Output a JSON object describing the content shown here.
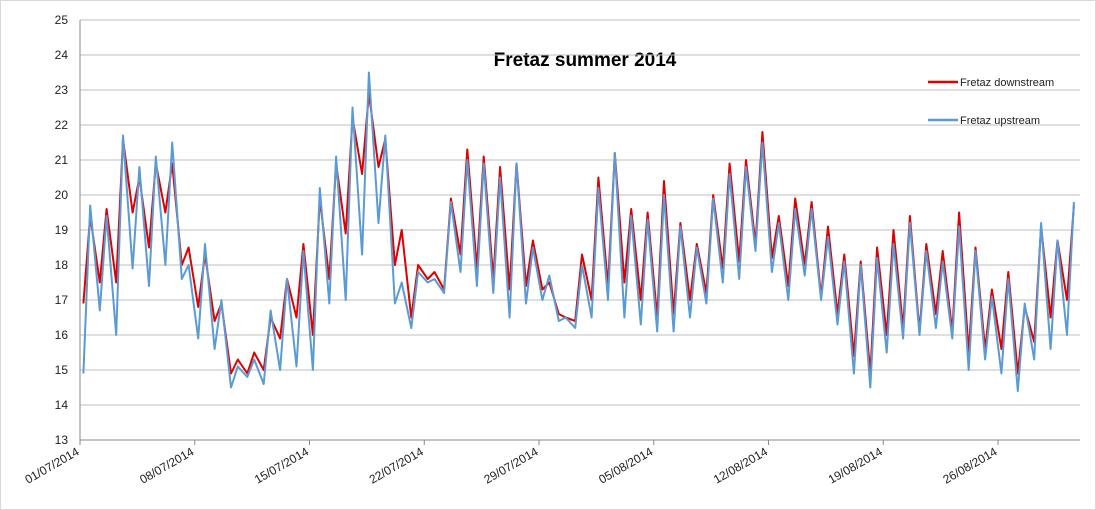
{
  "chart_data": {
    "type": "line",
    "title": "Fretaz  summer 2014",
    "x": [
      "2014-07-01 05:00",
      "2014-07-01 15:00",
      "2014-07-02 05:00",
      "2014-07-02 15:00",
      "2014-07-03 05:00",
      "2014-07-03 15:00",
      "2014-07-04 05:00",
      "2014-07-04 15:00",
      "2014-07-05 05:00",
      "2014-07-05 15:00",
      "2014-07-06 05:00",
      "2014-07-06 15:00",
      "2014-07-07 05:00",
      "2014-07-07 15:00",
      "2014-07-08 05:00",
      "2014-07-08 15:00",
      "2014-07-09 05:00",
      "2014-07-09 15:00",
      "2014-07-10 05:00",
      "2014-07-10 15:00",
      "2014-07-11 05:00",
      "2014-07-11 15:00",
      "2014-07-12 05:00",
      "2014-07-12 15:00",
      "2014-07-13 05:00",
      "2014-07-13 15:00",
      "2014-07-14 05:00",
      "2014-07-14 15:00",
      "2014-07-15 05:00",
      "2014-07-15 15:00",
      "2014-07-16 05:00",
      "2014-07-16 15:00",
      "2014-07-17 05:00",
      "2014-07-17 15:00",
      "2014-07-18 05:00",
      "2014-07-18 15:00",
      "2014-07-19 05:00",
      "2014-07-19 15:00",
      "2014-07-20 05:00",
      "2014-07-20 15:00",
      "2014-07-21 05:00",
      "2014-07-21 15:00",
      "2014-07-22 05:00",
      "2014-07-22 15:00",
      "2014-07-23 05:00",
      "2014-07-23 15:00",
      "2014-07-24 05:00",
      "2014-07-24 15:00",
      "2014-07-25 05:00",
      "2014-07-25 15:00",
      "2014-07-26 05:00",
      "2014-07-26 15:00",
      "2014-07-27 05:00",
      "2014-07-27 15:00",
      "2014-07-28 05:00",
      "2014-07-28 15:00",
      "2014-07-29 05:00",
      "2014-07-29 15:00",
      "2014-07-30 05:00",
      "2014-07-30 15:00",
      "2014-07-31 05:00",
      "2014-07-31 15:00",
      "2014-08-01 05:00",
      "2014-08-01 15:00",
      "2014-08-02 05:00",
      "2014-08-02 15:00",
      "2014-08-03 05:00",
      "2014-08-03 15:00",
      "2014-08-04 05:00",
      "2014-08-04 15:00",
      "2014-08-05 05:00",
      "2014-08-05 15:00",
      "2014-08-06 05:00",
      "2014-08-06 15:00",
      "2014-08-07 05:00",
      "2014-08-07 15:00",
      "2014-08-08 05:00",
      "2014-08-08 15:00",
      "2014-08-09 05:00",
      "2014-08-09 15:00",
      "2014-08-10 05:00",
      "2014-08-10 15:00",
      "2014-08-11 05:00",
      "2014-08-11 15:00",
      "2014-08-12 05:00",
      "2014-08-12 15:00",
      "2014-08-13 05:00",
      "2014-08-13 15:00",
      "2014-08-14 05:00",
      "2014-08-14 15:00",
      "2014-08-15 05:00",
      "2014-08-15 15:00",
      "2014-08-16 05:00",
      "2014-08-16 15:00",
      "2014-08-17 05:00",
      "2014-08-17 15:00",
      "2014-08-18 05:00",
      "2014-08-18 15:00",
      "2014-08-19 05:00",
      "2014-08-19 15:00",
      "2014-08-20 05:00",
      "2014-08-20 15:00",
      "2014-08-21 05:00",
      "2014-08-21 15:00",
      "2014-08-22 05:00",
      "2014-08-22 15:00",
      "2014-08-23 05:00",
      "2014-08-23 15:00",
      "2014-08-24 05:00",
      "2014-08-24 15:00",
      "2014-08-25 05:00",
      "2014-08-25 15:00",
      "2014-08-26 05:00",
      "2014-08-26 15:00",
      "2014-08-27 05:00",
      "2014-08-27 15:00",
      "2014-08-28 05:00",
      "2014-08-28 15:00",
      "2014-08-29 05:00",
      "2014-08-29 15:00",
      "2014-08-30 05:00",
      "2014-08-30 15:00"
    ],
    "series": [
      {
        "name": "Fretaz downstream",
        "color": "#e00000",
        "values": [
          16.9,
          19.4,
          17.5,
          19.6,
          17.5,
          21.6,
          19.5,
          20.5,
          18.5,
          20.9,
          19.5,
          20.9,
          18.0,
          18.5,
          16.8,
          18.3,
          16.4,
          16.9,
          14.9,
          15.3,
          14.9,
          15.5,
          15.0,
          16.5,
          15.9,
          17.6,
          16.5,
          18.6,
          16.0,
          19.9,
          17.6,
          20.9,
          18.9,
          22.2,
          20.6,
          22.9,
          20.8,
          21.6,
          18.0,
          19.0,
          16.5,
          18.0,
          17.6,
          17.8,
          17.3,
          19.9,
          18.3,
          21.3,
          17.9,
          21.1,
          17.6,
          20.8,
          17.3,
          20.9,
          17.4,
          18.7,
          17.3,
          17.5,
          16.6,
          16.5,
          16.4,
          18.3,
          17.0,
          20.5,
          17.4,
          21.2,
          17.5,
          19.6,
          17.0,
          19.5,
          16.5,
          20.4,
          16.6,
          19.2,
          17.0,
          18.6,
          17.2,
          20.0,
          17.9,
          20.9,
          18.1,
          21.0,
          18.6,
          21.8,
          18.2,
          19.4,
          17.4,
          19.9,
          18.0,
          19.8,
          17.1,
          19.1,
          16.6,
          18.3,
          15.4,
          18.1,
          14.9,
          18.5,
          16.0,
          19.0,
          16.2,
          19.4,
          16.1,
          18.6,
          16.6,
          18.4,
          16.1,
          19.5,
          15.5,
          18.5,
          15.6,
          17.3,
          15.6,
          17.8,
          14.9,
          16.8,
          15.8,
          19.1,
          16.5,
          18.7,
          17.0,
          19.7
        ]
      },
      {
        "name": "Fretaz upstream",
        "color": "#5b9bd5",
        "values": [
          14.9,
          19.7,
          16.7,
          19.4,
          16.0,
          21.7,
          17.9,
          20.8,
          17.4,
          21.1,
          18.0,
          21.5,
          17.6,
          18.0,
          15.9,
          18.6,
          15.6,
          17.0,
          14.5,
          15.1,
          14.8,
          15.3,
          14.6,
          16.7,
          15.0,
          17.6,
          15.1,
          18.4,
          15.0,
          20.2,
          16.9,
          21.1,
          17.0,
          22.5,
          18.3,
          23.5,
          19.2,
          21.7,
          16.9,
          17.5,
          16.2,
          17.8,
          17.5,
          17.6,
          17.2,
          19.8,
          17.8,
          21.0,
          17.4,
          20.9,
          17.2,
          20.5,
          16.5,
          20.9,
          16.9,
          18.5,
          17.0,
          17.7,
          16.4,
          16.5,
          16.2,
          18.0,
          16.5,
          20.2,
          17.0,
          21.2,
          16.5,
          19.4,
          16.3,
          19.3,
          16.1,
          20.0,
          16.1,
          19.1,
          16.5,
          18.5,
          16.9,
          19.9,
          17.5,
          20.6,
          17.6,
          20.8,
          18.4,
          21.5,
          17.8,
          19.2,
          17.0,
          19.6,
          17.7,
          19.6,
          17.0,
          18.8,
          16.3,
          18.1,
          14.9,
          18.0,
          14.5,
          18.2,
          15.5,
          18.6,
          15.9,
          19.2,
          16.0,
          18.4,
          16.2,
          18.1,
          15.9,
          19.1,
          15.0,
          18.4,
          15.3,
          17.1,
          14.9,
          17.6,
          14.4,
          16.9,
          15.3,
          19.2,
          15.6,
          18.7,
          16.0,
          19.8
        ]
      }
    ],
    "xlim": [
      "2014-07-01",
      "2014-08-31"
    ],
    "xticks": [
      {
        "value": "2014-07-01",
        "label": "01/07/2014"
      },
      {
        "value": "2014-07-08",
        "label": "08/07/2014"
      },
      {
        "value": "2014-07-15",
        "label": "15/07/2014"
      },
      {
        "value": "2014-07-22",
        "label": "22/07/2014"
      },
      {
        "value": "2014-07-29",
        "label": "29/07/2014"
      },
      {
        "value": "2014-08-05",
        "label": "05/08/2014"
      },
      {
        "value": "2014-08-12",
        "label": "12/08/2014"
      },
      {
        "value": "2014-08-19",
        "label": "19/08/2014"
      },
      {
        "value": "2014-08-26",
        "label": "26/08/2014"
      }
    ],
    "ylim": [
      13,
      25
    ],
    "yticks": [
      13,
      14,
      15,
      16,
      17,
      18,
      19,
      20,
      21,
      22,
      23,
      24,
      25
    ],
    "grid": true,
    "legend": "top-right"
  }
}
